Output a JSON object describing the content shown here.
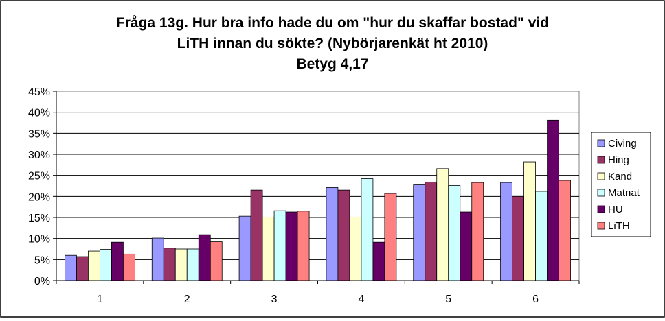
{
  "chart_data": {
    "type": "bar",
    "title_lines": [
      "Fråga 13g. Hur bra info hade du om \"hur du skaffar bostad\" vid",
      "LiTH innan du sökte? (Nybörjarenkät ht 2010)",
      "Betyg 4,17"
    ],
    "categories": [
      "1",
      "2",
      "3",
      "4",
      "5",
      "6"
    ],
    "y_ticks": [
      "0%",
      "5%",
      "10%",
      "15%",
      "20%",
      "25%",
      "30%",
      "35%",
      "40%",
      "45%"
    ],
    "ylim": [
      0,
      45
    ],
    "y_unit": "%",
    "grid": true,
    "legend_position": "right",
    "series": [
      {
        "name": "Civing",
        "color": "#9999FF",
        "values": [
          6.0,
          10.1,
          15.3,
          22.1,
          22.9,
          23.3
        ]
      },
      {
        "name": "Hing",
        "color": "#993366",
        "values": [
          5.7,
          7.7,
          21.5,
          21.5,
          23.4,
          20.0
        ]
      },
      {
        "name": "Kand",
        "color": "#FFFFCC",
        "values": [
          7.0,
          7.5,
          15.1,
          15.1,
          26.6,
          28.2
        ]
      },
      {
        "name": "Matnat",
        "color": "#CCFFFF",
        "values": [
          7.4,
          7.5,
          16.6,
          24.2,
          22.6,
          21.2
        ]
      },
      {
        "name": "HU",
        "color": "#660066",
        "values": [
          9.1,
          10.9,
          16.3,
          9.1,
          16.3,
          38.1
        ]
      },
      {
        "name": "LiTH",
        "color": "#FF8080",
        "values": [
          6.3,
          9.2,
          16.5,
          20.7,
          23.3,
          23.8
        ]
      }
    ]
  }
}
